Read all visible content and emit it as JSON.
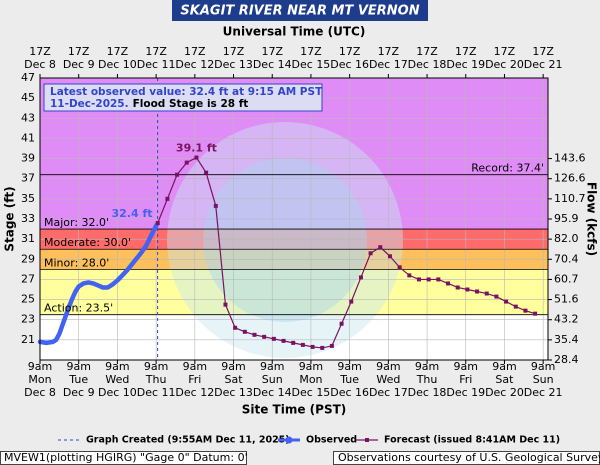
{
  "chart_data": {
    "type": "line",
    "title": "SKAGIT RIVER NEAR MT VERNON",
    "x2_axis_label": "Universal Time (UTC)",
    "x_axis_label": "Site Time (PST)",
    "y_axis_label": "Stage (ft)",
    "y2_axis_label": "Flow (kcfs)",
    "xlim": [
      "Dec 8 09:00",
      "Dec 21 12:00"
    ],
    "ylim": [
      19,
      47
    ],
    "yticks": [
      21,
      23,
      25,
      27,
      29,
      31,
      33,
      35,
      37,
      39,
      41,
      43,
      45,
      47
    ],
    "y2ticks": [
      28.4,
      35.4,
      43.2,
      51.6,
      60.7,
      70.4,
      {
        "value": 82,
        "label": "82.0"
      },
      95.9,
      110.7,
      126.6,
      143.6
    ],
    "grid": true,
    "xticks": [
      {
        "value": "Dec 8 09:00",
        "label": [
          "9am",
          "Mon",
          "Dec 8"
        ]
      },
      {
        "value": "Dec 9 09:00",
        "label": [
          "9am",
          "Tue",
          "Dec 9"
        ]
      },
      {
        "value": "Dec 10 09:00",
        "label": [
          "9am",
          "Wed",
          "Dec 10"
        ]
      },
      {
        "value": "Dec 11 09:00",
        "label": [
          "9am",
          "Thu",
          "Dec 11"
        ]
      },
      {
        "value": "Dec 12 09:00",
        "label": [
          "9am",
          "Fri",
          "Dec 12"
        ]
      },
      {
        "value": "Dec 13 09:00",
        "label": [
          "9am",
          "Sat",
          "Dec 13"
        ]
      },
      {
        "value": "Dec 14 09:00",
        "label": [
          "9am",
          "Sun",
          "Dec 14"
        ]
      },
      {
        "value": "Dec 15 09:00",
        "label": [
          "9am",
          "Mon",
          "Dec 15"
        ]
      },
      {
        "value": "Dec 16 09:00",
        "label": [
          "9am",
          "Tue",
          "Dec 16"
        ]
      },
      {
        "value": "Dec 17 09:00",
        "label": [
          "9am",
          "Wed",
          "Dec 17"
        ]
      },
      {
        "value": "Dec 18 09:00",
        "label": [
          "9am",
          "Thu",
          "Dec 18"
        ]
      },
      {
        "value": "Dec 19 09:00",
        "label": [
          "9am",
          "Fri",
          "Dec 19"
        ]
      },
      {
        "value": "Dec 20 09:00",
        "label": [
          "9am",
          "Sat",
          "Dec 20"
        ]
      },
      {
        "value": "Dec 21 09:00",
        "label": [
          "9am",
          "Sun",
          "Dec 21"
        ]
      }
    ],
    "x2ticks": [
      {
        "value": "Dec 8 09:00",
        "label": [
          "17Z",
          "Dec 8"
        ]
      },
      {
        "value": "Dec 9 09:00",
        "label": [
          "17Z",
          "Dec 9"
        ]
      },
      {
        "value": "Dec 10 09:00",
        "label": [
          "17Z",
          "Dec 10"
        ]
      },
      {
        "value": "Dec 11 09:00",
        "label": [
          "17Z",
          "Dec 11"
        ]
      },
      {
        "value": "Dec 12 09:00",
        "label": [
          "17Z",
          "Dec 12"
        ]
      },
      {
        "value": "Dec 13 09:00",
        "label": [
          "17Z",
          "Dec 13"
        ]
      },
      {
        "value": "Dec 14 09:00",
        "label": [
          "17Z",
          "Dec 14"
        ]
      },
      {
        "value": "Dec 15 09:00",
        "label": [
          "17Z",
          "Dec 15"
        ]
      },
      {
        "value": "Dec 16 09:00",
        "label": [
          "17Z",
          "Dec 16"
        ]
      },
      {
        "value": "Dec 17 09:00",
        "label": [
          "17Z",
          "Dec 17"
        ]
      },
      {
        "value": "Dec 18 09:00",
        "label": [
          "17Z",
          "Dec 18"
        ]
      },
      {
        "value": "Dec 19 09:00",
        "label": [
          "17Z",
          "Dec 19"
        ]
      },
      {
        "value": "Dec 20 09:00",
        "label": [
          "17Z",
          "Dec 20"
        ]
      },
      {
        "value": "Dec 21 09:00",
        "label": [
          "17Z",
          "Dec 21"
        ]
      }
    ],
    "thresholds": [
      {
        "label": "Record: 37.4'",
        "value": 37.4
      },
      {
        "label": "Major: 32.0'",
        "value": 32,
        "color": "#e08cf6"
      },
      {
        "label": "Moderate: 30.0'",
        "value": 30,
        "color": "#ff6a6a"
      },
      {
        "label": "Minor: 28.0'",
        "value": 28,
        "color": "#ffbf5a"
      },
      {
        "label": "Action: 23.5'",
        "value": 23.5,
        "color": "#ffff9e"
      }
    ],
    "created": {
      "x": "Dec 11 09:55",
      "label": "Graph Created (9:55AM Dec 11, 2025)",
      "color": "#3344cc"
    },
    "info": {
      "line1": "Latest observed value: 32.4 ft at 9:15 AM PST",
      "line2a": "11-Dec-2025.",
      "line2b": "Flood Stage is 28 ft"
    },
    "series": [
      {
        "name": "Observed",
        "color": "#4262f2",
        "last_label": "32.4 ft",
        "x": [
          "Dec 8 09:00",
          "Dec 8 13:00",
          "Dec 8 17:00",
          "Dec 8 19:00",
          "Dec 8 21:00",
          "Dec 8 23:00",
          "Dec 9 01:00",
          "Dec 9 03:00",
          "Dec 9 05:00",
          "Dec 9 07:00",
          "Dec 9 09:00",
          "Dec 9 12:00",
          "Dec 9 15:00",
          "Dec 9 18:00",
          "Dec 9 21:00",
          "Dec 10 00:00",
          "Dec 10 03:00",
          "Dec 10 06:00",
          "Dec 10 09:00",
          "Dec 10 12:00",
          "Dec 10 15:00",
          "Dec 10 18:00",
          "Dec 10 21:00",
          "Dec 11 00:00",
          "Dec 11 03:00",
          "Dec 11 06:00",
          "Dec 11 08:00",
          "Dec 11 09:15"
        ],
        "values": [
          20.8,
          20.7,
          20.8,
          21.0,
          21.6,
          22.5,
          23.4,
          24.3,
          25.1,
          25.8,
          26.3,
          26.6,
          26.7,
          26.6,
          26.4,
          26.2,
          26.2,
          26.5,
          26.9,
          27.4,
          27.9,
          28.5,
          29.1,
          29.7,
          30.4,
          31.4,
          32.0,
          32.4
        ]
      },
      {
        "name": "Forecast (issued 8:41AM Dec 11)",
        "color": "#7a1262",
        "peak_label": "39.1 ft",
        "x": [
          "Dec 11 10:00",
          "Dec 11 16:00",
          "Dec 11 22:00",
          "Dec 12 04:00",
          "Dec 12 10:00",
          "Dec 12 16:00",
          "Dec 12 22:00",
          "Dec 13 04:00",
          "Dec 13 10:00",
          "Dec 13 16:00",
          "Dec 13 22:00",
          "Dec 14 04:00",
          "Dec 14 10:00",
          "Dec 14 16:00",
          "Dec 14 22:00",
          "Dec 15 04:00",
          "Dec 15 10:00",
          "Dec 15 16:00",
          "Dec 15 22:00",
          "Dec 16 04:00",
          "Dec 16 10:00",
          "Dec 16 16:00",
          "Dec 16 22:00",
          "Dec 17 04:00",
          "Dec 17 10:00",
          "Dec 17 16:00",
          "Dec 17 22:00",
          "Dec 18 04:00",
          "Dec 18 10:00",
          "Dec 18 16:00",
          "Dec 18 22:00",
          "Dec 19 04:00",
          "Dec 19 10:00",
          "Dec 19 16:00",
          "Dec 19 22:00",
          "Dec 20 04:00",
          "Dec 20 10:00",
          "Dec 20 16:00",
          "Dec 20 22:00",
          "Dec 21 04:00"
        ],
        "values": [
          32.6,
          35.0,
          37.4,
          38.6,
          39.1,
          37.6,
          34.3,
          24.5,
          22.2,
          21.8,
          21.5,
          21.3,
          21.1,
          20.9,
          20.7,
          20.5,
          20.3,
          20.2,
          20.4,
          22.6,
          24.8,
          27.2,
          29.6,
          30.2,
          29.3,
          28.2,
          27.4,
          27.0,
          27.0,
          27.0,
          26.6,
          26.2,
          26.0,
          25.8,
          25.6,
          25.3,
          24.8,
          24.3,
          23.9,
          23.6
        ]
      }
    ],
    "footer": {
      "left": "MVEW1(plotting HGIRG) \"Gage 0\" Datum: 0'",
      "right": "Observations courtesy of U.S. Geological Survey"
    }
  }
}
